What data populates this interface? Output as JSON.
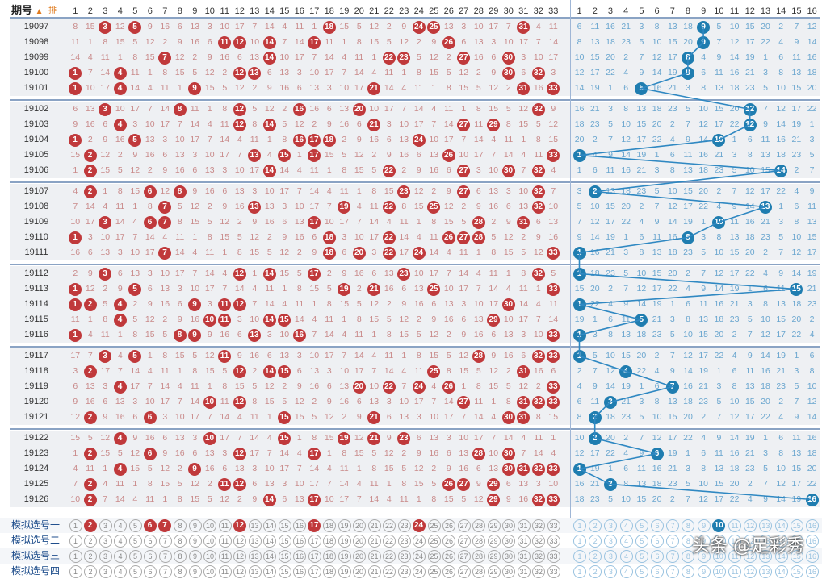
{
  "header": {
    "issue_label": "期号",
    "sort_label": "排序",
    "red_cols": [
      "1",
      "2",
      "3",
      "4",
      "5",
      "6",
      "7",
      "8",
      "9",
      "10",
      "11",
      "12",
      "13",
      "14",
      "15",
      "16",
      "17",
      "18",
      "19",
      "20",
      "21",
      "22",
      "23",
      "24",
      "25",
      "26",
      "27",
      "28",
      "29",
      "30",
      "31",
      "32",
      "33"
    ],
    "blue_cols": [
      "1",
      "2",
      "3",
      "4",
      "5",
      "6",
      "7",
      "8",
      "9",
      "10",
      "11",
      "12",
      "13",
      "14",
      "15",
      "16"
    ]
  },
  "rows": [
    {
      "issue": "19097",
      "red": [
        5,
        3,
        5,
        18,
        24,
        25,
        31
      ],
      "blue": 9
    },
    {
      "issue": "19098",
      "red": [
        11,
        12,
        14,
        17,
        26
      ],
      "blue": 9
    },
    {
      "issue": "19099",
      "red": [
        7,
        14,
        22,
        23,
        27,
        30
      ],
      "blue": 8
    },
    {
      "issue": "19100",
      "red": [
        1,
        4,
        12,
        13,
        30,
        32
      ],
      "blue": 8
    },
    {
      "issue": "19101",
      "red": [
        1,
        4,
        9,
        21,
        31,
        33
      ],
      "blue": 5
    },
    {
      "issue": "19102",
      "red": [
        3,
        8,
        12,
        16,
        20,
        32
      ],
      "blue": 12
    },
    {
      "issue": "19103",
      "red": [
        4,
        12,
        14,
        21,
        27,
        29
      ],
      "blue": 12
    },
    {
      "issue": "19104",
      "red": [
        1,
        5,
        16,
        17,
        18,
        24
      ],
      "blue": 10
    },
    {
      "issue": "19105",
      "red": [
        2,
        13,
        15,
        17,
        26,
        33
      ],
      "blue": 1
    },
    {
      "issue": "19106",
      "red": [
        2,
        14,
        22,
        27,
        30,
        32
      ],
      "blue": 14
    },
    {
      "issue": "19107",
      "red": [
        2,
        6,
        8,
        23,
        27,
        32
      ],
      "blue": 2
    },
    {
      "issue": "19108",
      "red": [
        7,
        13,
        19,
        22,
        25,
        32
      ],
      "blue": 13
    },
    {
      "issue": "19109",
      "red": [
        3,
        6,
        7,
        17,
        28,
        31
      ],
      "blue": 10
    },
    {
      "issue": "19110",
      "red": [
        1,
        18,
        22,
        26,
        27,
        28
      ],
      "blue": 8
    },
    {
      "issue": "19111",
      "red": [
        7,
        18,
        20,
        22,
        24,
        33
      ],
      "blue": 1
    },
    {
      "issue": "19112",
      "red": [
        3,
        12,
        14,
        17,
        23,
        32
      ],
      "blue": 1
    },
    {
      "issue": "19113",
      "red": [
        1,
        5,
        19,
        21,
        25,
        33
      ],
      "blue": 15
    },
    {
      "issue": "19114",
      "red": [
        1,
        2,
        4,
        9,
        11,
        12,
        30
      ],
      "blue": 1
    },
    {
      "issue": "19115",
      "red": [
        4,
        10,
        11,
        14,
        15,
        29
      ],
      "blue": 5
    },
    {
      "issue": "19116",
      "red": [
        1,
        8,
        9,
        13,
        16,
        33
      ],
      "blue": 1
    },
    {
      "issue": "19117",
      "red": [
        3,
        5,
        11,
        28,
        32,
        33
      ],
      "blue": 1
    },
    {
      "issue": "19118",
      "red": [
        2,
        12,
        14,
        15,
        25,
        31
      ],
      "blue": 4
    },
    {
      "issue": "19119",
      "red": [
        4,
        20,
        22,
        24,
        26,
        33
      ],
      "blue": 7
    },
    {
      "issue": "19120",
      "red": [
        10,
        12,
        27,
        31,
        32,
        33
      ],
      "blue": 3
    },
    {
      "issue": "19121",
      "red": [
        2,
        6,
        15,
        21,
        30,
        31
      ],
      "blue": 2
    },
    {
      "issue": "19122",
      "red": [
        4,
        10,
        15,
        19,
        21,
        23
      ],
      "blue": 2
    },
    {
      "issue": "19123",
      "red": [
        2,
        6,
        12,
        17,
        28,
        30
      ],
      "blue": 6
    },
    {
      "issue": "19124",
      "red": [
        4,
        9,
        30,
        31,
        32,
        33
      ],
      "blue": 1
    },
    {
      "issue": "19125",
      "red": [
        2,
        11,
        12,
        26,
        27,
        29
      ],
      "blue": 3
    },
    {
      "issue": "19126",
      "red": [
        2,
        14,
        17,
        29,
        32,
        33
      ],
      "blue": 16
    }
  ],
  "simulations": [
    {
      "label": "模拟选号一",
      "red": [
        2,
        6,
        7,
        12,
        17,
        24
      ],
      "blue": 10
    },
    {
      "label": "模拟选号二",
      "red": [],
      "blue": null
    },
    {
      "label": "模拟选号三",
      "red": [],
      "blue": null
    },
    {
      "label": "模拟选号四",
      "red": [],
      "blue": null
    }
  ],
  "watermark": "头条 @足彩秀",
  "colors": {
    "red_ball": "#c0393b",
    "dark_ball": "#6b3f0c",
    "blue_ball": "#1f7db0",
    "band": "#eef0f3"
  }
}
